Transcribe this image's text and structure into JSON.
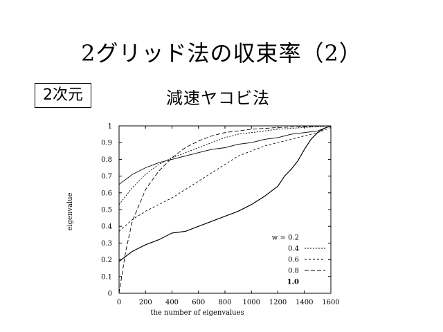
{
  "slide": {
    "title": "2グリッド法の収束率（2）",
    "dimension_label": "2次元",
    "subtitle": "減速ヤコビ法"
  },
  "chart_data": {
    "type": "line",
    "title": "",
    "xlabel": "the number of eigenvalues",
    "ylabel": "eigenvalue",
    "xlim": [
      0,
      1600
    ],
    "ylim": [
      0,
      1
    ],
    "xticks": [
      0,
      200,
      400,
      600,
      800,
      1000,
      1200,
      1400,
      1600
    ],
    "yticks": [
      0,
      0.1,
      0.2,
      0.3,
      0.4,
      0.5,
      0.6,
      0.7,
      0.8,
      0.9,
      1
    ],
    "xtick_labels": [
      "0",
      "200",
      "400",
      "600",
      "800",
      "1000",
      "1200",
      "1400",
      "1600"
    ],
    "ytick_labels": [
      "0",
      "0.1",
      "0.2",
      "0.3",
      "0.4",
      "0.5",
      "0.6",
      "0.7",
      "0.8",
      "0.9",
      "1"
    ],
    "grid": false,
    "legend": "right",
    "series": [
      {
        "name": "w = 0.2",
        "dash": "none",
        "x": [
          0,
          100,
          200,
          300,
          400,
          500,
          600,
          700,
          800,
          900,
          1000,
          1100,
          1200,
          1300,
          1400,
          1500,
          1550,
          1600
        ],
        "y": [
          0.65,
          0.71,
          0.75,
          0.78,
          0.8,
          0.82,
          0.84,
          0.86,
          0.87,
          0.89,
          0.9,
          0.92,
          0.93,
          0.95,
          0.96,
          0.97,
          0.985,
          1.0
        ]
      },
      {
        "name": "0.4",
        "dash": "2 2",
        "x": [
          0,
          100,
          200,
          300,
          400,
          500,
          600,
          700,
          800,
          900,
          1000,
          1100,
          1200,
          1300,
          1400,
          1500,
          1550,
          1600
        ],
        "y": [
          0.53,
          0.63,
          0.71,
          0.77,
          0.81,
          0.84,
          0.87,
          0.9,
          0.93,
          0.95,
          0.96,
          0.97,
          0.98,
          0.985,
          0.99,
          0.995,
          0.998,
          1.0
        ]
      },
      {
        "name": "0.6",
        "dash": "3 3",
        "x": [
          0,
          100,
          200,
          300,
          400,
          500,
          600,
          700,
          800,
          900,
          1000,
          1100,
          1200,
          1300,
          1400,
          1500,
          1550,
          1600
        ],
        "y": [
          0.37,
          0.44,
          0.49,
          0.53,
          0.57,
          0.62,
          0.67,
          0.72,
          0.77,
          0.82,
          0.85,
          0.88,
          0.9,
          0.92,
          0.94,
          0.96,
          0.975,
          0.99
        ]
      },
      {
        "name": "0.8",
        "dash": "6 3",
        "x": [
          0,
          50,
          100,
          200,
          300,
          400,
          500,
          600,
          700,
          800,
          900,
          1000,
          1100,
          1200,
          1300,
          1400,
          1500,
          1600
        ],
        "y": [
          0.0,
          0.25,
          0.43,
          0.62,
          0.73,
          0.81,
          0.87,
          0.91,
          0.94,
          0.96,
          0.97,
          0.98,
          0.985,
          0.99,
          0.993,
          0.996,
          0.998,
          1.0
        ]
      },
      {
        "name": "1.0",
        "dash": "none",
        "x": [
          0,
          100,
          200,
          300,
          400,
          500,
          600,
          700,
          800,
          900,
          1000,
          1100,
          1200,
          1250,
          1300,
          1350,
          1400,
          1450,
          1500,
          1550,
          1600
        ],
        "y": [
          0.19,
          0.25,
          0.29,
          0.32,
          0.36,
          0.37,
          0.4,
          0.43,
          0.46,
          0.49,
          0.53,
          0.58,
          0.64,
          0.7,
          0.74,
          0.79,
          0.86,
          0.92,
          0.96,
          0.985,
          1.0
        ]
      }
    ]
  }
}
